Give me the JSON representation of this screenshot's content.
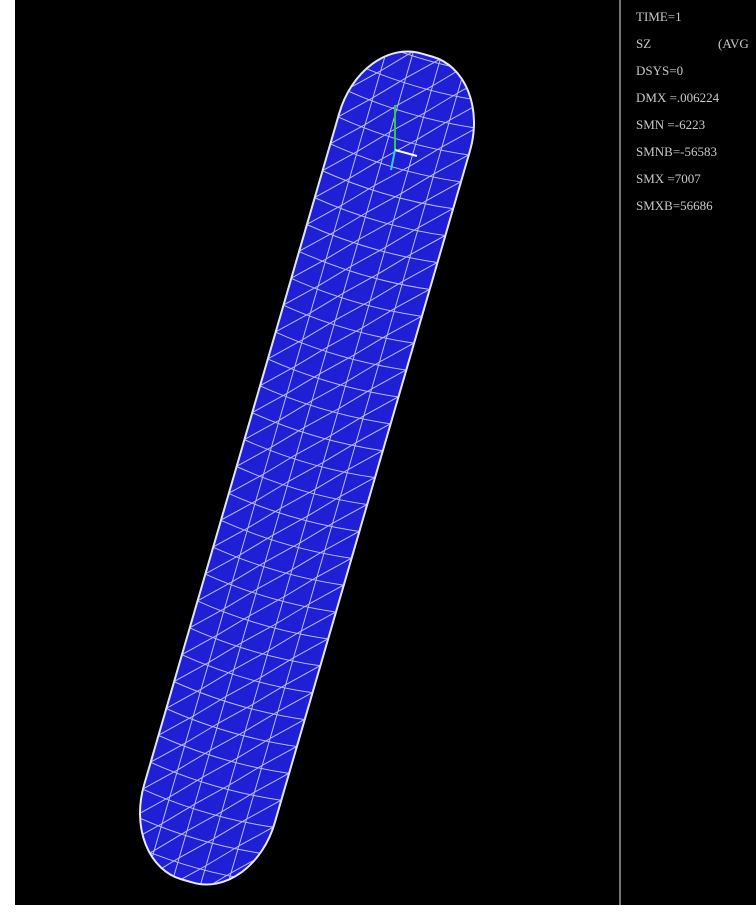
{
  "status_panel": {
    "lines": [
      "TIME=1",
      "SZ",
      "DSYS=0",
      "DMX =.006224",
      "SMN =-6223",
      "SMNB=-56583",
      "SMX =7007",
      "SMXB=56686"
    ],
    "avg_label": "(AVG"
  }
}
